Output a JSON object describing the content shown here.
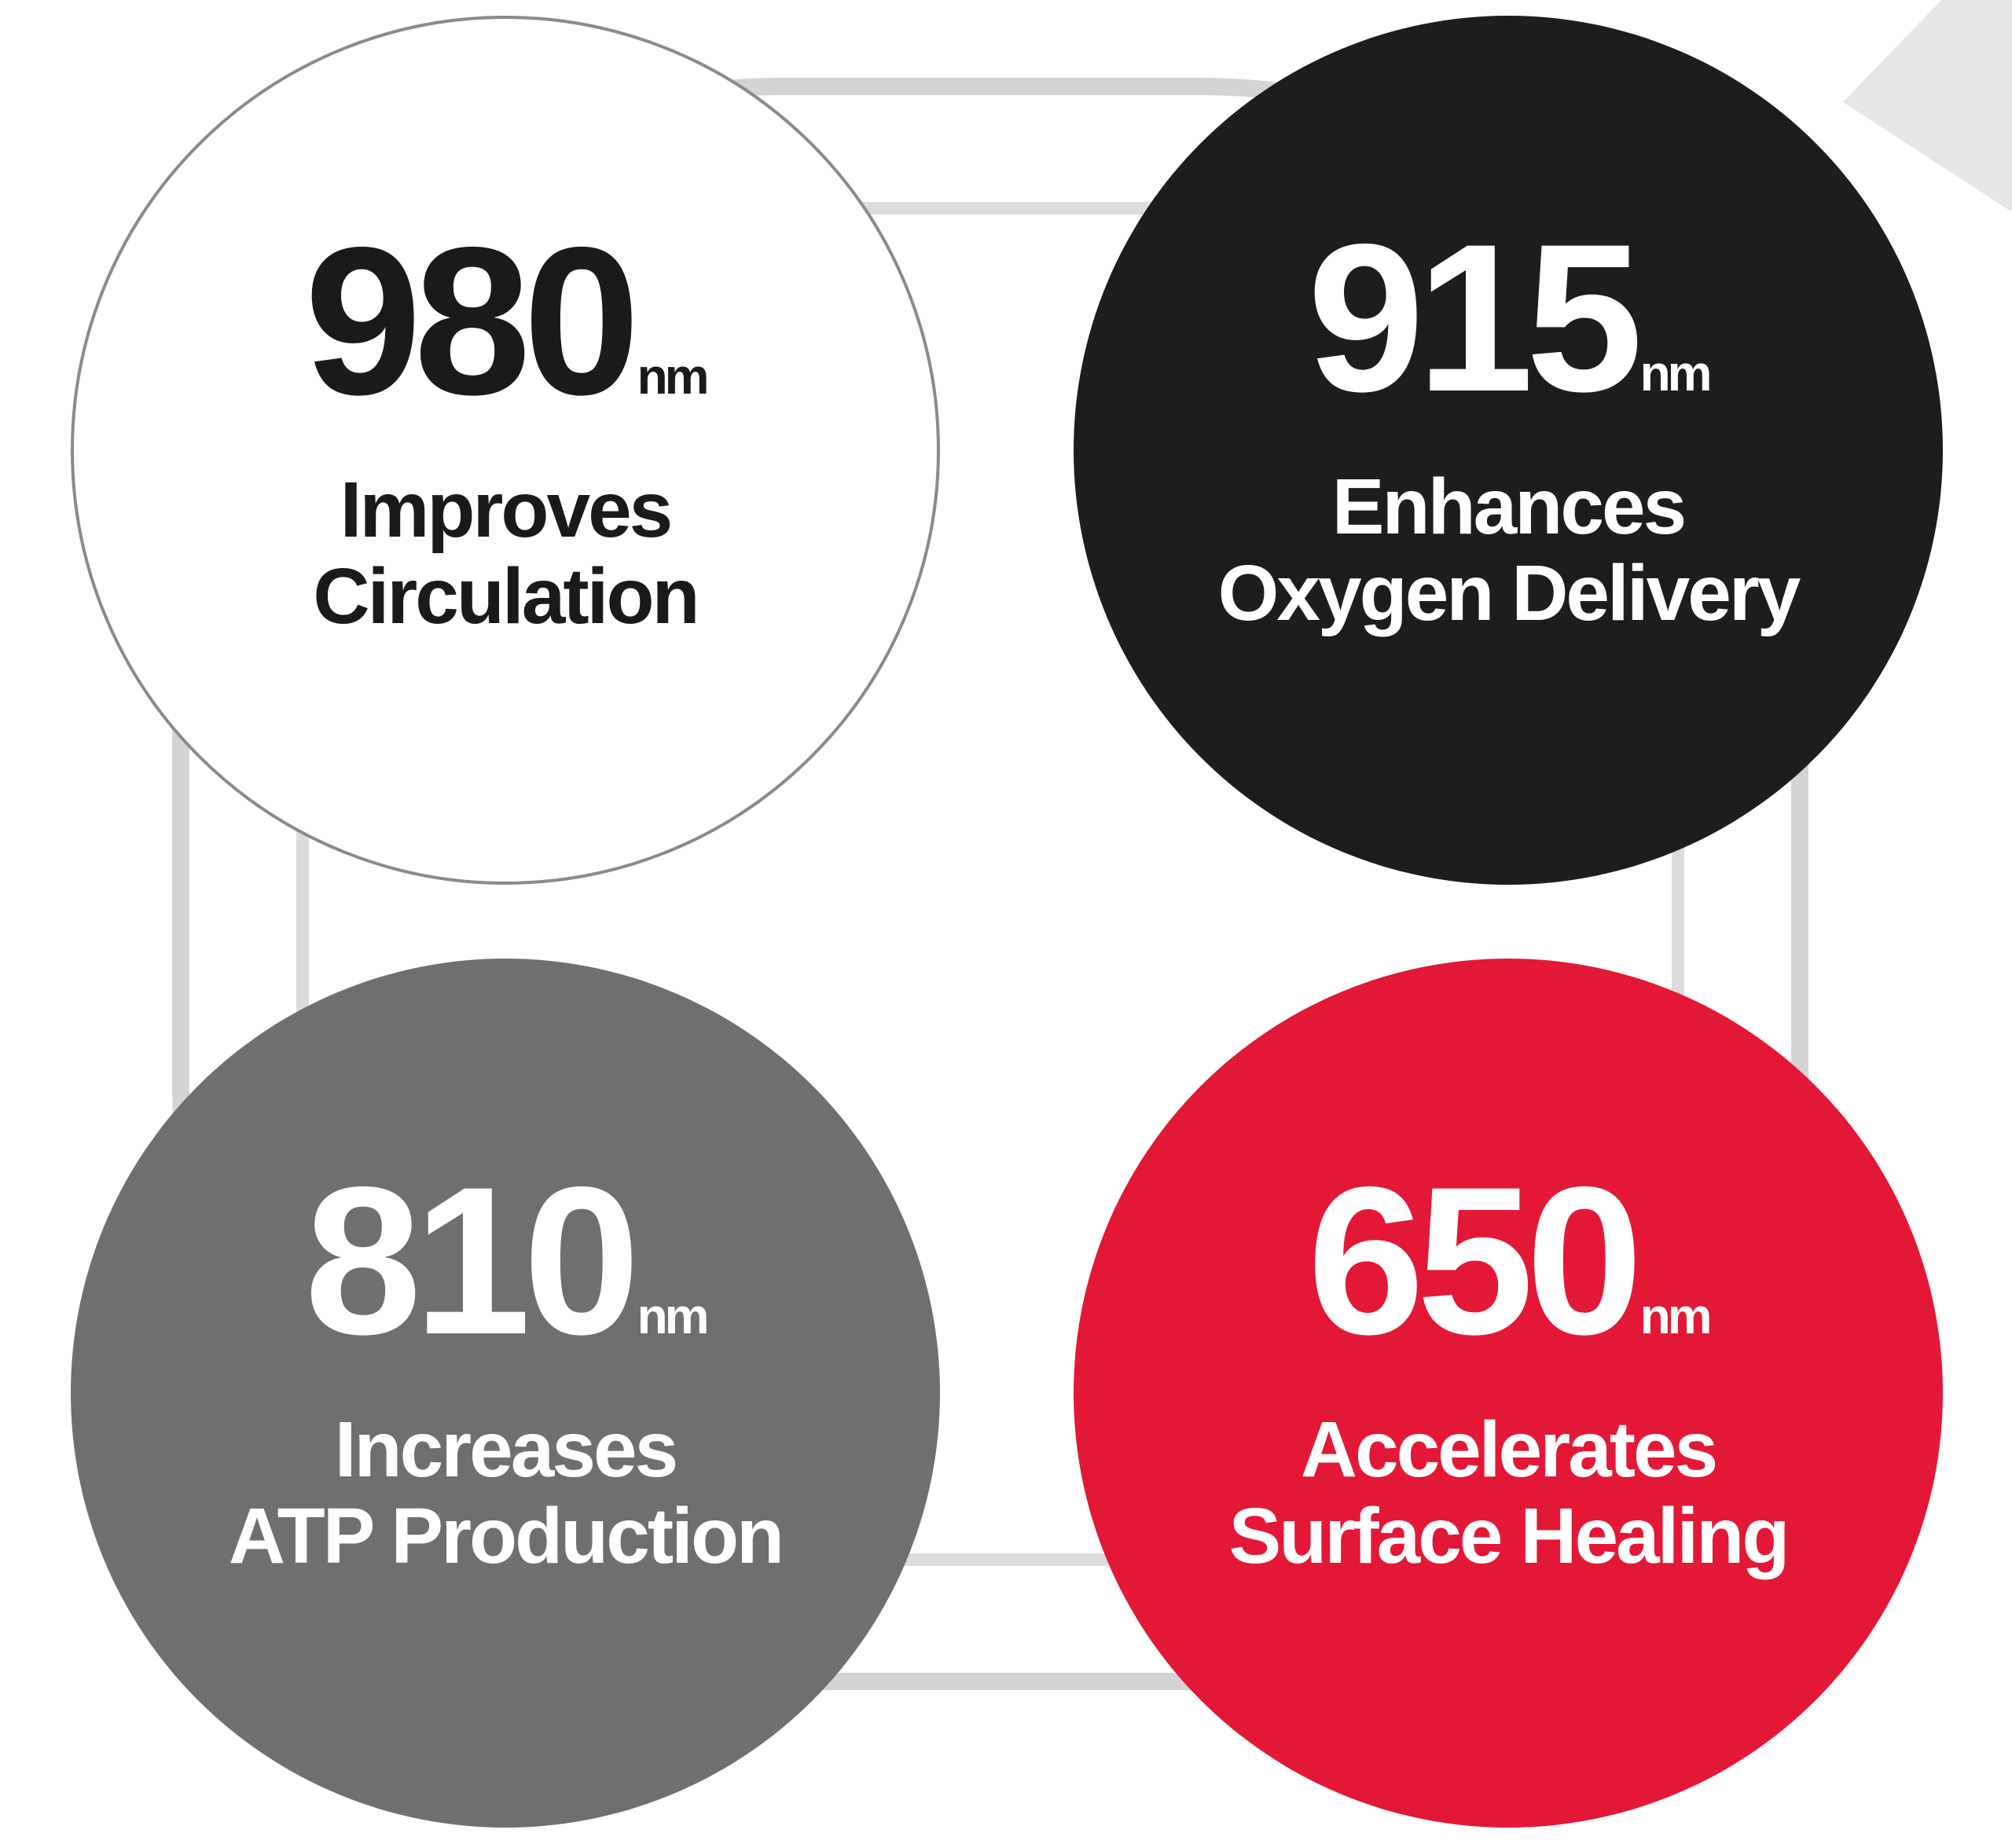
{
  "colors": {
    "circle_980": "#ffffff",
    "circle_915": "#1e1c1c",
    "circle_810": "#6f6e70",
    "circle_650": "#e31837",
    "ring": "#d4d4d4"
  },
  "circles": [
    {
      "id": "980",
      "value": "980",
      "unit": "nm",
      "line1": "Improves",
      "line2": "Circulation"
    },
    {
      "id": "915",
      "value": "915",
      "unit": "nm",
      "line1": "Enhances",
      "line2": "Oxygen Delivery"
    },
    {
      "id": "810",
      "value": "810",
      "unit": "nm",
      "line1": "Increases",
      "line2": "ATP Production"
    },
    {
      "id": "650",
      "value": "650",
      "unit": "nm",
      "line1": "Accelerates",
      "line2": "Surface Healing"
    }
  ]
}
